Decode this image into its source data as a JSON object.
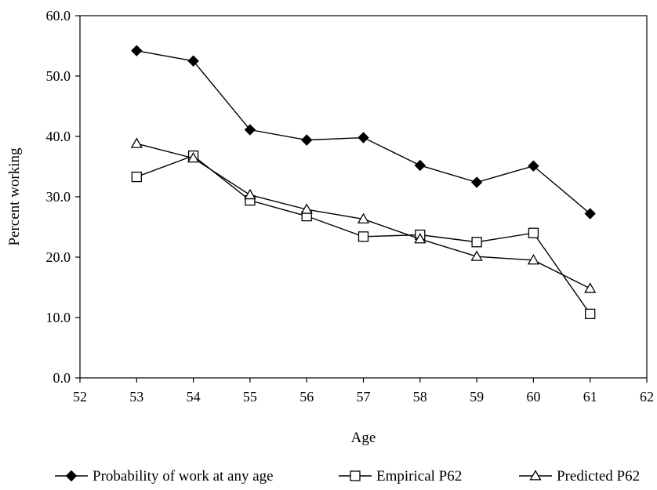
{
  "chart_data": {
    "type": "line",
    "title": "",
    "xlabel": "Age",
    "ylabel": "Percent working",
    "xlim": [
      52,
      62
    ],
    "ylim": [
      0,
      60
    ],
    "x_ticks": [
      "52",
      "53",
      "54",
      "55",
      "56",
      "57",
      "58",
      "59",
      "60",
      "61",
      "62"
    ],
    "y_ticks": [
      "0.0",
      "10.0",
      "20.0",
      "30.0",
      "40.0",
      "50.0",
      "60.0"
    ],
    "x": [
      53,
      54,
      55,
      56,
      57,
      58,
      59,
      60,
      61
    ],
    "grid": false,
    "legend_position": "bottom",
    "series": [
      {
        "name": "Probability of work at any age",
        "marker": "filled-diamond",
        "values": [
          54.2,
          52.5,
          41.1,
          39.4,
          39.8,
          35.2,
          32.4,
          35.1,
          27.2
        ]
      },
      {
        "name": "Empirical P62",
        "marker": "open-square",
        "values": [
          33.3,
          36.8,
          29.4,
          26.8,
          23.4,
          23.7,
          22.5,
          24.0,
          10.6
        ]
      },
      {
        "name": "Predicted P62",
        "marker": "open-triangle",
        "values": [
          38.8,
          36.4,
          30.3,
          27.9,
          26.3,
          23.0,
          20.1,
          19.5,
          14.8
        ]
      }
    ],
    "colors": {
      "line": "#000000",
      "marker_fill_open": "#ffffff",
      "marker_fill_solid": "#000000"
    }
  }
}
